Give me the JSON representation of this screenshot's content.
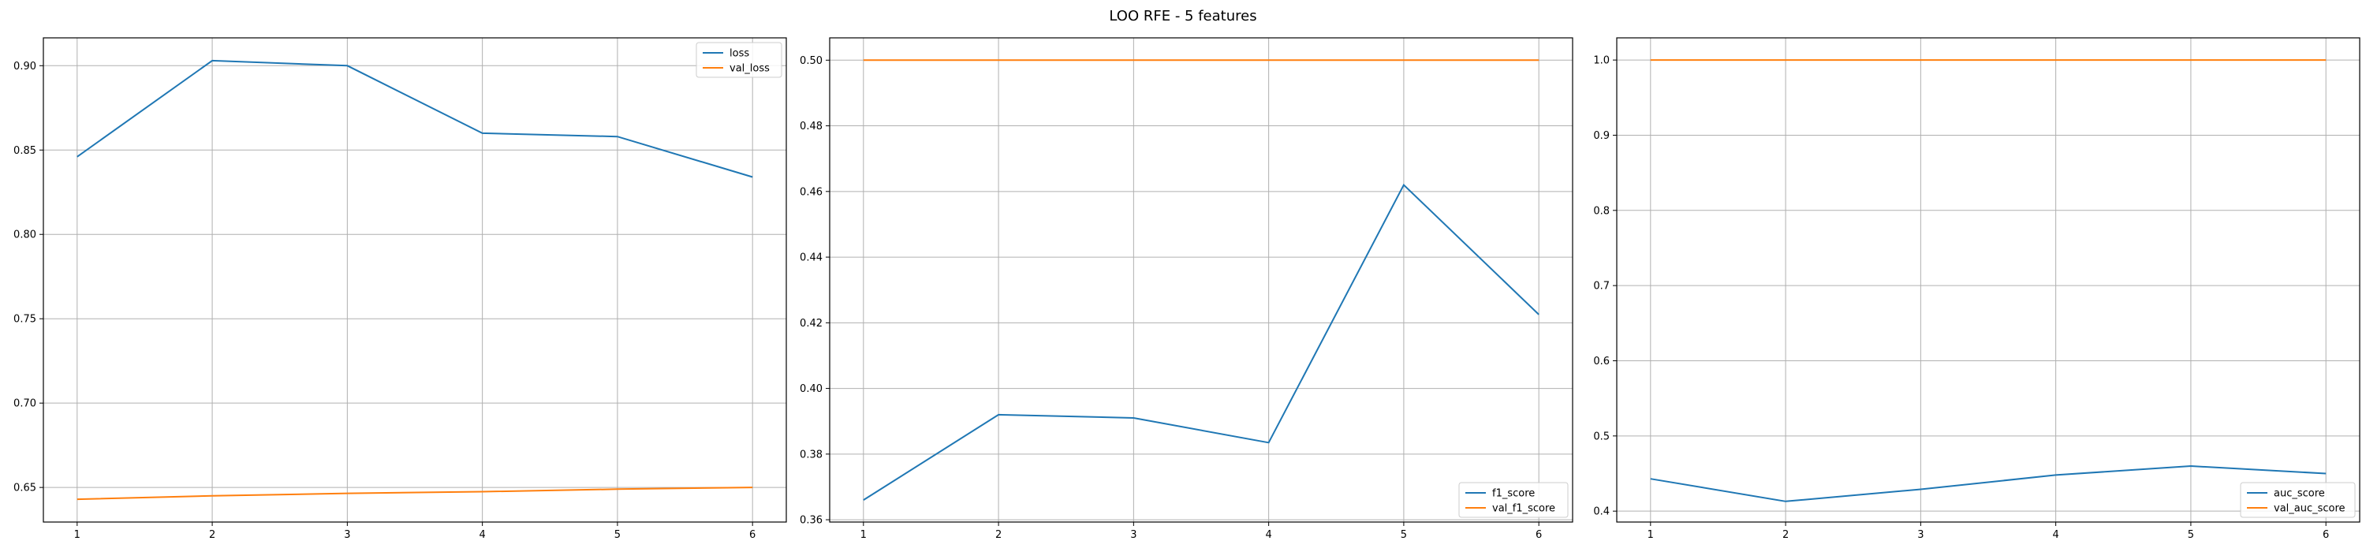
{
  "title": "LOO RFE - 5 features",
  "colors": {
    "series_a": "#1f77b4",
    "series_b": "#ff7f0e",
    "grid": "#b0b0b0"
  },
  "chart_data": [
    {
      "type": "line",
      "x": [
        1,
        2,
        3,
        4,
        5,
        6
      ],
      "xticks": [
        1,
        2,
        3,
        4,
        5,
        6
      ],
      "xlim": [
        0.75,
        6.25
      ],
      "ylim": [
        0.6295,
        0.9165
      ],
      "yticks": [
        0.65,
        0.7,
        0.75,
        0.8,
        0.85,
        0.9
      ],
      "ytick_labels": [
        "0.65",
        "0.70",
        "0.75",
        "0.80",
        "0.85",
        "0.90"
      ],
      "grid": true,
      "legend_position": "top-right",
      "series": [
        {
          "name": "loss",
          "values": [
            0.846,
            0.903,
            0.9,
            0.86,
            0.858,
            0.834
          ]
        },
        {
          "name": "val_loss",
          "values": [
            0.643,
            0.645,
            0.6465,
            0.6475,
            0.649,
            0.65
          ]
        }
      ]
    },
    {
      "type": "line",
      "x": [
        1,
        2,
        3,
        4,
        5,
        6
      ],
      "xticks": [
        1,
        2,
        3,
        4,
        5,
        6
      ],
      "xlim": [
        0.75,
        6.25
      ],
      "ylim": [
        0.3593,
        0.5068
      ],
      "yticks": [
        0.36,
        0.38,
        0.4,
        0.42,
        0.44,
        0.46,
        0.48,
        0.5
      ],
      "ytick_labels": [
        "0.36",
        "0.38",
        "0.40",
        "0.42",
        "0.44",
        "0.46",
        "0.48",
        "0.50"
      ],
      "grid": true,
      "legend_position": "bottom-right",
      "series": [
        {
          "name": "f1_score",
          "values": [
            0.366,
            0.392,
            0.391,
            0.3835,
            0.462,
            0.4225
          ]
        },
        {
          "name": "val_f1_score",
          "values": [
            0.5,
            0.5,
            0.5,
            0.5,
            0.5,
            0.5
          ]
        }
      ]
    },
    {
      "type": "line",
      "x": [
        1,
        2,
        3,
        4,
        5,
        6
      ],
      "xticks": [
        1,
        2,
        3,
        4,
        5,
        6
      ],
      "xlim": [
        0.75,
        6.25
      ],
      "ylim": [
        0.3855,
        1.0295
      ],
      "yticks": [
        0.4,
        0.5,
        0.6,
        0.7,
        0.8,
        0.9,
        1.0
      ],
      "ytick_labels": [
        "0.4",
        "0.5",
        "0.6",
        "0.7",
        "0.8",
        "0.9",
        "1.0"
      ],
      "grid": true,
      "legend_position": "bottom-right",
      "series": [
        {
          "name": "auc_score",
          "values": [
            0.443,
            0.413,
            0.429,
            0.448,
            0.46,
            0.45
          ]
        },
        {
          "name": "val_auc_score",
          "values": [
            1.0,
            1.0,
            1.0,
            1.0,
            1.0,
            1.0
          ]
        }
      ]
    }
  ]
}
